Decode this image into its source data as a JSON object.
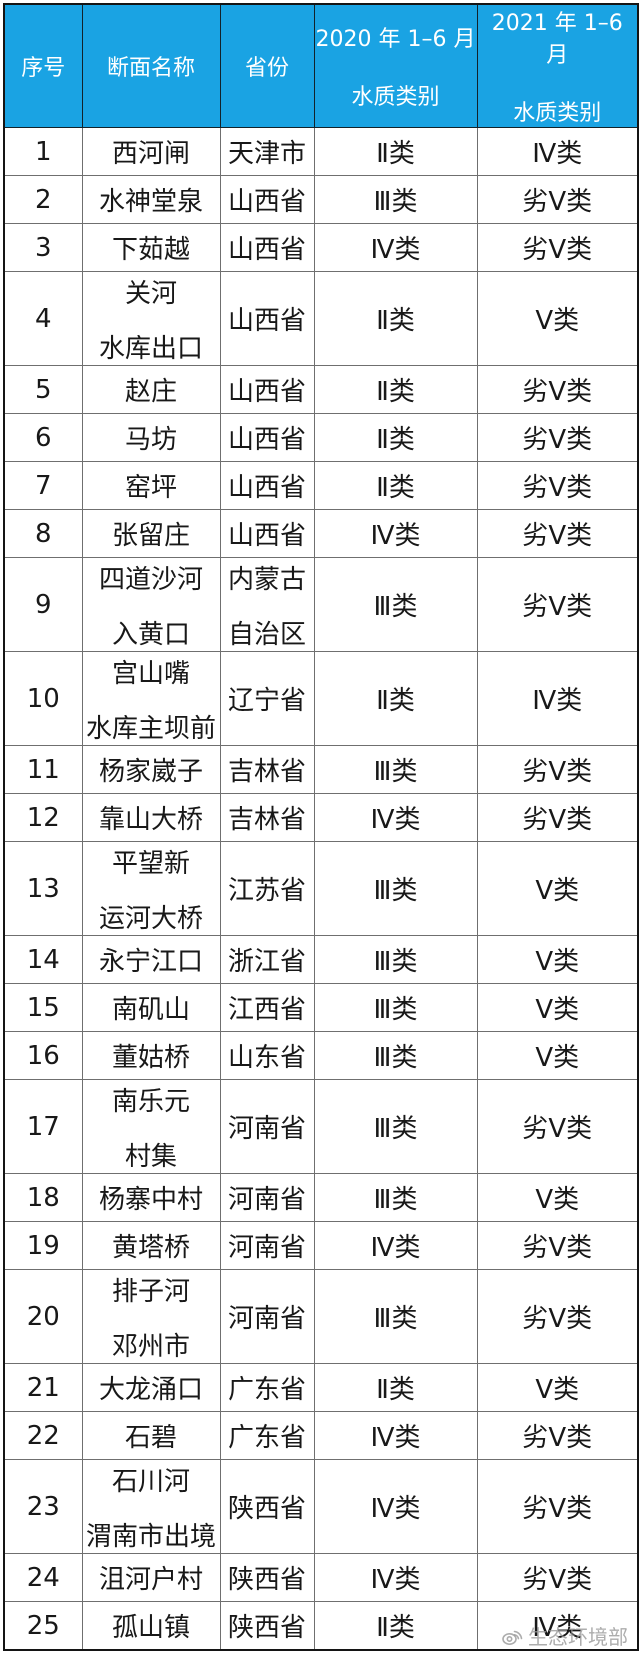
{
  "table": {
    "header": {
      "col_index": "序号",
      "col_name": "断面名称",
      "col_province": "省份",
      "col_2020_line1": "2020 年 1–6 月",
      "col_2020_line2": "水质类别",
      "col_2021_line1": "2021 年 1–6 月",
      "col_2021_line2": "水质类别"
    },
    "rows": [
      {
        "index": "1",
        "name": [
          "西河闸"
        ],
        "province": [
          "天津市"
        ],
        "q2020": "Ⅱ类",
        "q2021": "Ⅳ类"
      },
      {
        "index": "2",
        "name": [
          "水神堂泉"
        ],
        "province": [
          "山西省"
        ],
        "q2020": "Ⅲ类",
        "q2021": "劣Ⅴ类"
      },
      {
        "index": "3",
        "name": [
          "下茹越"
        ],
        "province": [
          "山西省"
        ],
        "q2020": "Ⅳ类",
        "q2021": "劣Ⅴ类"
      },
      {
        "index": "4",
        "name": [
          "关河",
          "水库出口"
        ],
        "province": [
          "山西省"
        ],
        "q2020": "Ⅱ类",
        "q2021": "Ⅴ类"
      },
      {
        "index": "5",
        "name": [
          "赵庄"
        ],
        "province": [
          "山西省"
        ],
        "q2020": "Ⅱ类",
        "q2021": "劣Ⅴ类"
      },
      {
        "index": "6",
        "name": [
          "马坊"
        ],
        "province": [
          "山西省"
        ],
        "q2020": "Ⅱ类",
        "q2021": "劣Ⅴ类"
      },
      {
        "index": "7",
        "name": [
          "窑坪"
        ],
        "province": [
          "山西省"
        ],
        "q2020": "Ⅱ类",
        "q2021": "劣Ⅴ类"
      },
      {
        "index": "8",
        "name": [
          "张留庄"
        ],
        "province": [
          "山西省"
        ],
        "q2020": "Ⅳ类",
        "q2021": "劣Ⅴ类"
      },
      {
        "index": "9",
        "name": [
          "四道沙河",
          "入黄口"
        ],
        "province": [
          "内蒙古",
          "自治区"
        ],
        "q2020": "Ⅲ类",
        "q2021": "劣Ⅴ类"
      },
      {
        "index": "10",
        "name": [
          "宫山嘴",
          "水库主坝前"
        ],
        "province": [
          "辽宁省"
        ],
        "q2020": "Ⅱ类",
        "q2021": "Ⅳ类"
      },
      {
        "index": "11",
        "name": [
          "杨家崴子"
        ],
        "province": [
          "吉林省"
        ],
        "q2020": "Ⅲ类",
        "q2021": "劣Ⅴ类"
      },
      {
        "index": "12",
        "name": [
          "靠山大桥"
        ],
        "province": [
          "吉林省"
        ],
        "q2020": "Ⅳ类",
        "q2021": "劣Ⅴ类"
      },
      {
        "index": "13",
        "name": [
          "平望新",
          "运河大桥"
        ],
        "province": [
          "江苏省"
        ],
        "q2020": "Ⅲ类",
        "q2021": "Ⅴ类"
      },
      {
        "index": "14",
        "name": [
          "永宁江口"
        ],
        "province": [
          "浙江省"
        ],
        "q2020": "Ⅲ类",
        "q2021": "Ⅴ类"
      },
      {
        "index": "15",
        "name": [
          "南矶山"
        ],
        "province": [
          "江西省"
        ],
        "q2020": "Ⅲ类",
        "q2021": "Ⅴ类"
      },
      {
        "index": "16",
        "name": [
          "董姑桥"
        ],
        "province": [
          "山东省"
        ],
        "q2020": "Ⅲ类",
        "q2021": "Ⅴ类"
      },
      {
        "index": "17",
        "name": [
          "南乐元",
          "村集"
        ],
        "province": [
          "河南省"
        ],
        "q2020": "Ⅲ类",
        "q2021": "劣Ⅴ类"
      },
      {
        "index": "18",
        "name": [
          "杨寨中村"
        ],
        "province": [
          "河南省"
        ],
        "q2020": "Ⅲ类",
        "q2021": "Ⅴ类"
      },
      {
        "index": "19",
        "name": [
          "黄塔桥"
        ],
        "province": [
          "河南省"
        ],
        "q2020": "Ⅳ类",
        "q2021": "劣Ⅴ类"
      },
      {
        "index": "20",
        "name": [
          "排子河",
          "邓州市"
        ],
        "province": [
          "河南省"
        ],
        "q2020": "Ⅲ类",
        "q2021": "劣Ⅴ类"
      },
      {
        "index": "21",
        "name": [
          "大龙涌口"
        ],
        "province": [
          "广东省"
        ],
        "q2020": "Ⅱ类",
        "q2021": "Ⅴ类"
      },
      {
        "index": "22",
        "name": [
          "石碧"
        ],
        "province": [
          "广东省"
        ],
        "q2020": "Ⅳ类",
        "q2021": "劣Ⅴ类"
      },
      {
        "index": "23",
        "name": [
          "石川河",
          "渭南市出境"
        ],
        "province": [
          "陕西省"
        ],
        "q2020": "Ⅳ类",
        "q2021": "劣Ⅴ类"
      },
      {
        "index": "24",
        "name": [
          "沮河户村"
        ],
        "province": [
          "陕西省"
        ],
        "q2020": "Ⅳ类",
        "q2021": "劣Ⅴ类"
      },
      {
        "index": "25",
        "name": [
          "孤山镇"
        ],
        "province": [
          "陕西省"
        ],
        "q2020": "Ⅱ类",
        "q2021": "Ⅳ类"
      }
    ]
  },
  "watermark": {
    "icon": "weibo-icon",
    "text": "生态环境部"
  },
  "colors": {
    "header_bg": "#1aa3e3",
    "header_text": "#ffffff",
    "grid_line": "#6f6f6f",
    "outer_border": "#141414",
    "body_text": "#181818",
    "watermark": "#969696"
  }
}
